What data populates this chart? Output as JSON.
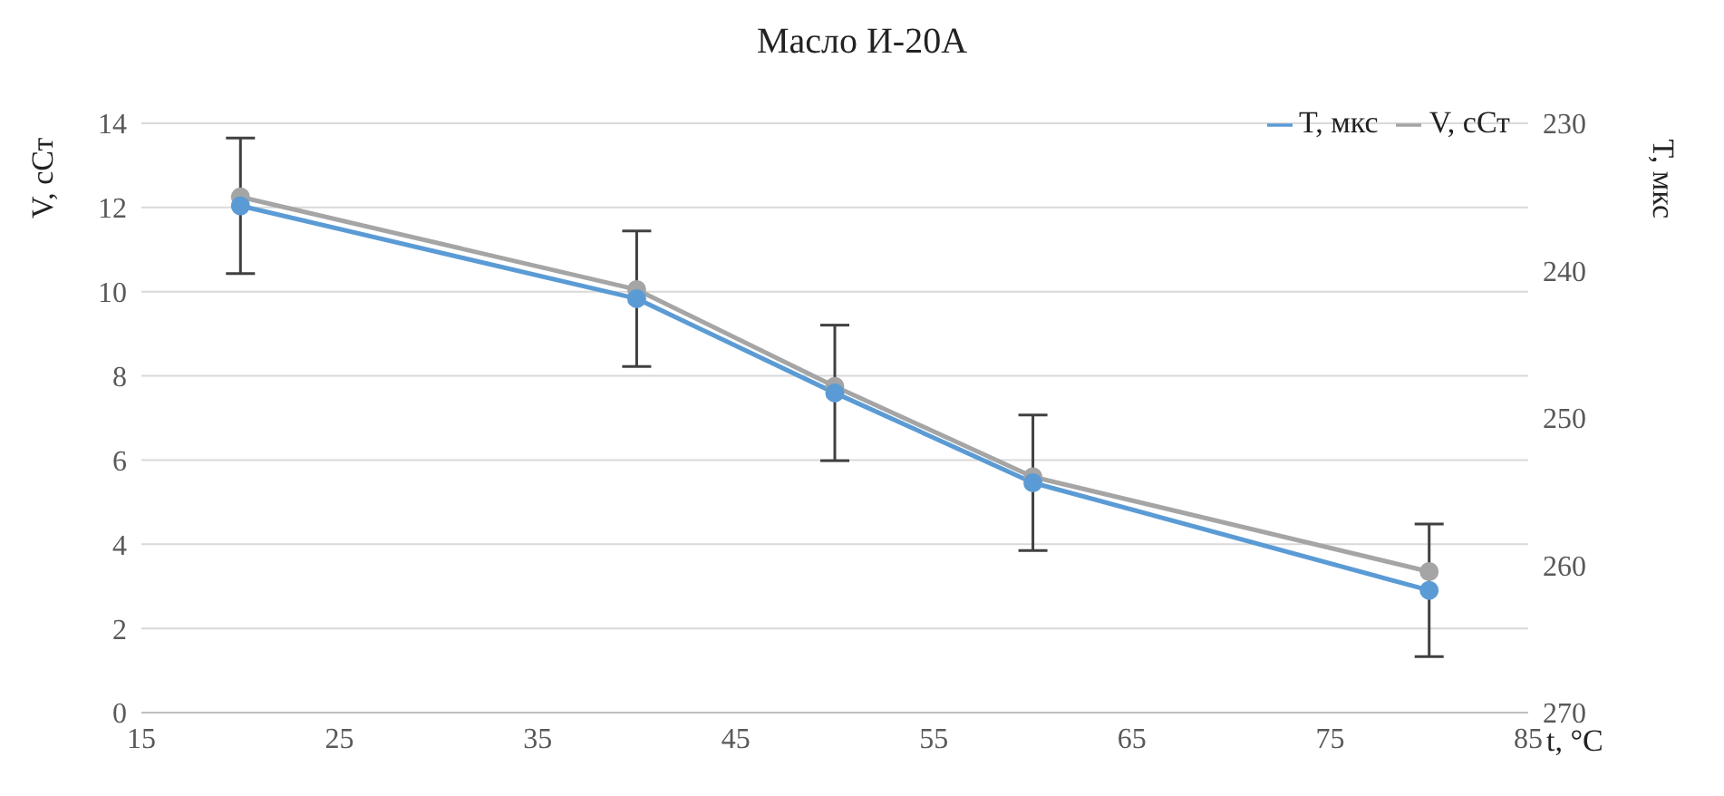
{
  "chart_data": {
    "type": "line",
    "title": "Масло И-20А",
    "xlabel": "t, °C",
    "ylabel": "V, сСт",
    "y2label": "T, мкс",
    "x": [
      20,
      40,
      50,
      60,
      80
    ],
    "series": [
      {
        "name": "V, сСт",
        "color": "#a5a5a5",
        "values": [
          12.25,
          10.05,
          7.75,
          5.6,
          3.35
        ]
      },
      {
        "name": "T, мкс",
        "color": "#5b9bd5",
        "axis": "y2",
        "values": [
          235.6,
          241.9,
          248.3,
          254.4,
          261.7
        ],
        "errors": [
          4.6,
          4.6,
          4.6,
          4.6,
          4.5
        ]
      }
    ],
    "xlim": [
      15,
      85
    ],
    "xticks": [
      15,
      25,
      35,
      45,
      55,
      65,
      75,
      85
    ],
    "ylim": [
      0,
      14
    ],
    "yticks": [
      0,
      2,
      4,
      6,
      8,
      10,
      12,
      14
    ],
    "y2lim": [
      270,
      230
    ],
    "y2ticks": [
      230,
      240,
      250,
      260,
      270
    ],
    "grid": "y",
    "legend": "top right",
    "marker": "circle",
    "line_style": "solid"
  }
}
